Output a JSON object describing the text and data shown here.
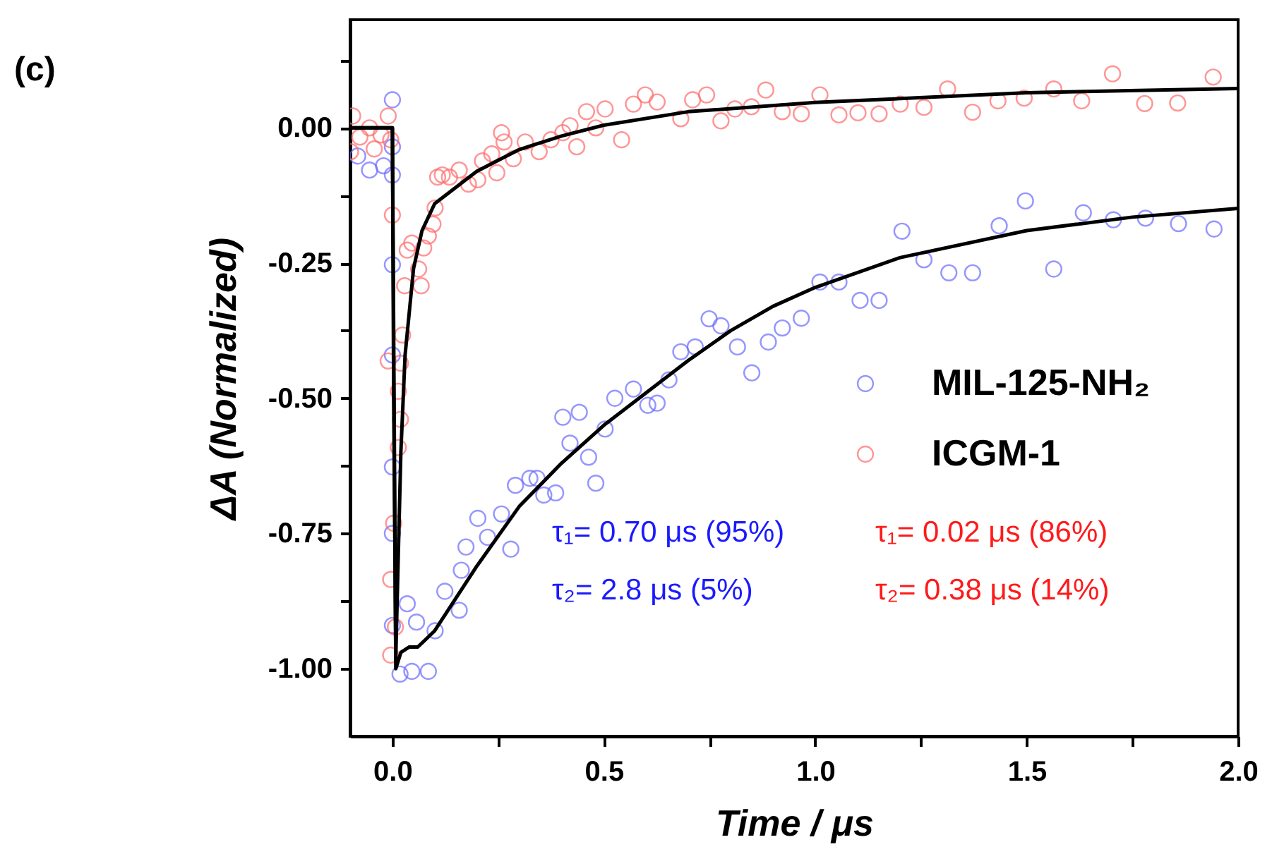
{
  "chart_data": {
    "type": "scatter",
    "xlabel": "Time / μs",
    "ylabel": "ΔA (Normalized)",
    "xlim": [
      -0.1,
      2.0
    ],
    "ylim": [
      -1.125,
      0.2
    ],
    "xticks": [
      {
        "value": 0,
        "label": "0.0"
      },
      {
        "value": 0.25,
        "label": null
      },
      {
        "value": 0.5,
        "label": "0.5"
      },
      {
        "value": 0.75,
        "label": null
      },
      {
        "value": 1,
        "label": "1.0"
      },
      {
        "value": 1.25,
        "label": null
      },
      {
        "value": 1.5,
        "label": "1.5"
      },
      {
        "value": 1.75,
        "label": null
      },
      {
        "value": 2,
        "label": "2.0"
      }
    ],
    "yticks": [
      {
        "value": 0.125,
        "label": null
      },
      {
        "value": 0,
        "label": "0.00"
      },
      {
        "value": -0.125,
        "label": null
      },
      {
        "value": -0.25,
        "label": "-0.25"
      },
      {
        "value": -0.375,
        "label": null
      },
      {
        "value": -0.5,
        "label": "-0.50"
      },
      {
        "value": -0.625,
        "label": null
      },
      {
        "value": -0.75,
        "label": "-0.75"
      },
      {
        "value": -0.875,
        "label": null
      },
      {
        "value": -1,
        "label": "-1.00"
      }
    ],
    "grid": false,
    "legend": "right",
    "marker": "circle",
    "annotations": [
      "(c)",
      "τ₁= 0.70 μs (95%)",
      "τ₂= 2.8 μs (5%)",
      "τ₁= 0.02 μs (86%)",
      "τ₂= 0.38 μs (14%)"
    ],
    "series": [
      {
        "name": "MIL-125-NH₂",
        "color": "#6b6bff",
        "x": [
          -0.082,
          -0.054,
          -0.021,
          0.0,
          0.0,
          0.0,
          0.0,
          0.0,
          0.0,
          0.0,
          0.0,
          0.018,
          0.046,
          0.085,
          0.035,
          0.057,
          0.101,
          0.124,
          0.158,
          0.163,
          0.174,
          0.202,
          0.225,
          0.258,
          0.28,
          0.291,
          0.325,
          0.342,
          0.358,
          0.386,
          0.403,
          0.442,
          0.42,
          0.464,
          0.481,
          0.503,
          0.526,
          0.57,
          0.604,
          0.626,
          0.654,
          0.682,
          0.716,
          0.749,
          0.777,
          0.816,
          0.85,
          0.889,
          0.922,
          0.967,
          1.011,
          1.056,
          1.106,
          1.151,
          1.205,
          1.257,
          1.316,
          1.372,
          1.435,
          1.497,
          1.564,
          1.634,
          1.705,
          1.781,
          1.859,
          1.943
        ],
        "values": [
          -0.052,
          -0.078,
          -0.07,
          0.052,
          -0.087,
          -0.035,
          -0.253,
          -0.42,
          -0.627,
          -0.75,
          -0.92,
          -1.01,
          -1.005,
          -1.005,
          -0.88,
          -0.914,
          -0.93,
          -0.857,
          -0.892,
          -0.818,
          -0.775,
          -0.722,
          -0.757,
          -0.714,
          -0.779,
          -0.661,
          -0.648,
          -0.648,
          -0.679,
          -0.675,
          -0.535,
          -0.526,
          -0.583,
          -0.609,
          -0.657,
          -0.557,
          -0.5,
          -0.483,
          -0.513,
          -0.509,
          -0.466,
          -0.414,
          -0.405,
          -0.353,
          -0.366,
          -0.405,
          -0.453,
          -0.396,
          -0.37,
          -0.352,
          -0.285,
          -0.285,
          -0.319,
          -0.319,
          -0.191,
          -0.244,
          -0.268,
          -0.268,
          -0.181,
          -0.135,
          -0.261,
          -0.157,
          -0.17,
          -0.167,
          -0.177,
          -0.187
        ]
      },
      {
        "name": "ICGM-1",
        "color": "#ff6b6b",
        "x": [
          -0.094,
          -0.077,
          -0.054,
          -0.043,
          -0.027,
          -0.01,
          -0.004,
          -0.099,
          0.0,
          -0.01,
          0.014,
          0.019,
          0.014,
          0.003,
          -0.004,
          -0.004,
          0.007,
          0.019,
          0.024,
          0.029,
          0.035,
          0.046,
          0.062,
          0.068,
          0.074,
          0.085,
          0.096,
          0.101,
          0.107,
          0.118,
          0.135,
          0.158,
          0.18,
          0.202,
          0.213,
          0.235,
          0.258,
          0.264,
          0.247,
          0.286,
          0.314,
          0.347,
          0.375,
          0.403,
          0.436,
          0.42,
          0.459,
          0.481,
          0.503,
          0.542,
          0.57,
          0.598,
          0.626,
          0.682,
          0.71,
          0.743,
          0.777,
          0.81,
          0.849,
          0.883,
          0.922,
          0.967,
          1.011,
          1.056,
          1.101,
          1.151,
          1.201,
          1.257,
          1.313,
          1.372,
          1.432,
          1.494,
          1.564,
          1.63,
          1.703,
          1.779,
          1.857,
          1.941
        ],
        "values": [
          0.022,
          -0.017,
          0.0,
          -0.039,
          -0.013,
          0.022,
          -0.022,
          -0.044,
          -0.161,
          -0.431,
          -0.487,
          -0.539,
          -0.591,
          -0.731,
          -0.835,
          -0.975,
          -0.923,
          -0.435,
          -0.383,
          -0.292,
          -0.226,
          -0.213,
          -0.261,
          -0.292,
          -0.222,
          -0.2,
          -0.178,
          -0.148,
          -0.091,
          -0.087,
          -0.091,
          -0.078,
          -0.104,
          -0.096,
          -0.061,
          -0.048,
          -0.009,
          -0.026,
          -0.083,
          -0.057,
          -0.026,
          -0.044,
          -0.022,
          -0.009,
          -0.035,
          0.004,
          0.03,
          0.0,
          0.035,
          -0.022,
          0.044,
          0.061,
          0.048,
          0.017,
          0.052,
          0.061,
          0.013,
          0.035,
          0.039,
          0.07,
          0.03,
          0.026,
          0.061,
          0.024,
          0.028,
          0.026,
          0.044,
          0.038,
          0.072,
          0.029,
          0.05,
          0.055,
          0.072,
          0.05,
          0.1,
          0.045,
          0.046,
          0.094
        ]
      },
      {
        "type": "line",
        "marker": "none",
        "color": "#000000",
        "x": [
          -0.1,
          0.0,
          0.004,
          0.008,
          0.02,
          0.04,
          0.06,
          0.1,
          0.15,
          0.2,
          0.3,
          0.4,
          0.5,
          0.6,
          0.7,
          0.8,
          0.9,
          1.0,
          1.2,
          1.5,
          1.75,
          2.0
        ],
        "values": [
          0.0,
          0.0,
          -0.5,
          -1.0,
          -0.97,
          -0.96,
          -0.96,
          -0.93,
          -0.87,
          -0.81,
          -0.7,
          -0.62,
          -0.55,
          -0.49,
          -0.43,
          -0.375,
          -0.33,
          -0.295,
          -0.24,
          -0.19,
          -0.165,
          -0.149
        ]
      },
      {
        "type": "line",
        "marker": "none",
        "color": "#000000",
        "x": [
          -0.1,
          0.0,
          0.003,
          0.008,
          0.012,
          0.02,
          0.03,
          0.05,
          0.07,
          0.1,
          0.15,
          0.2,
          0.3,
          0.4,
          0.5,
          0.7,
          1.0,
          1.5,
          2.0
        ],
        "values": [
          0.0,
          0.0,
          -0.5,
          -0.98,
          -0.85,
          -0.6,
          -0.42,
          -0.26,
          -0.19,
          -0.14,
          -0.11,
          -0.08,
          -0.04,
          -0.015,
          0.005,
          0.03,
          0.047,
          0.065,
          0.073
        ]
      }
    ]
  }
}
